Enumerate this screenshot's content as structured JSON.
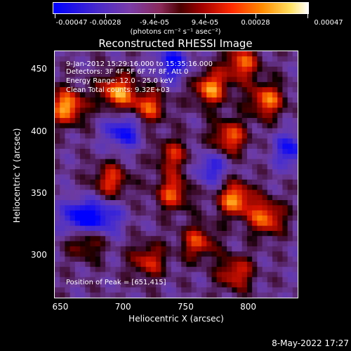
{
  "colorbar": {
    "ticks": [
      "-0.00047",
      "-0.00028",
      "-9.4e-05",
      "9.4e-05",
      "0.00028",
      "0.00047"
    ],
    "units": "(photons cm⁻² s⁻¹ asec⁻²)"
  },
  "title": "Reconstructed RHESSI Image",
  "annotations": {
    "time_range": "9-Jan-2012 15:29:16.000 to 15:35:16.000",
    "detectors": "Detectors: 3F 4F 5F 6F 7F 8F, Att 0",
    "energy": "Energy Range: 12.0 - 25.0 keV",
    "clean": "Clean    Total counts: 9.32E+03",
    "peak": "Position of Peak = [651,415]"
  },
  "axes": {
    "xlabel": "Heliocentric X (arcsec)",
    "ylabel": "Heliocentric Y (arcsec)",
    "xticks": [
      "650",
      "700",
      "750",
      "800"
    ],
    "yticks": [
      "450",
      "400",
      "350",
      "300"
    ]
  },
  "footer": {
    "timestamp": "8-May-2022 17:27"
  },
  "chart_data": {
    "type": "heatmap",
    "title": "Reconstructed RHESSI Image",
    "xlabel": "Heliocentric X (arcsec)",
    "ylabel": "Heliocentric Y (arcsec)",
    "xlim": [
      645,
      840
    ],
    "ylim": [
      265,
      465
    ],
    "color_range": [
      -0.00047,
      0.00047
    ],
    "peak_position": [
      651,
      415
    ],
    "hotspots": [
      {
        "x": 655,
        "y": 420,
        "level": 1.0
      },
      {
        "x": 695,
        "y": 432,
        "level": 0.95
      },
      {
        "x": 720,
        "y": 420,
        "level": 0.75
      },
      {
        "x": 770,
        "y": 435,
        "level": 0.9
      },
      {
        "x": 795,
        "y": 455,
        "level": 0.8
      },
      {
        "x": 815,
        "y": 425,
        "level": 0.85
      },
      {
        "x": 785,
        "y": 395,
        "level": 0.8
      },
      {
        "x": 690,
        "y": 360,
        "level": 0.7
      },
      {
        "x": 740,
        "y": 350,
        "level": 0.75
      },
      {
        "x": 790,
        "y": 345,
        "level": 0.95
      },
      {
        "x": 815,
        "y": 330,
        "level": 0.85
      },
      {
        "x": 760,
        "y": 310,
        "level": 0.7
      },
      {
        "x": 720,
        "y": 295,
        "level": 0.65
      },
      {
        "x": 790,
        "y": 285,
        "level": 0.7
      },
      {
        "x": 670,
        "y": 310,
        "level": 0.55
      },
      {
        "x": 740,
        "y": 380,
        "level": 0.6
      }
    ],
    "coldspots": [
      {
        "x": 665,
        "y": 330,
        "level": -0.85
      },
      {
        "x": 740,
        "y": 455,
        "level": -0.7
      },
      {
        "x": 700,
        "y": 400,
        "level": -0.7
      },
      {
        "x": 835,
        "y": 385,
        "level": -0.65
      },
      {
        "x": 685,
        "y": 330,
        "level": -0.6
      },
      {
        "x": 770,
        "y": 370,
        "level": -0.55
      }
    ]
  }
}
